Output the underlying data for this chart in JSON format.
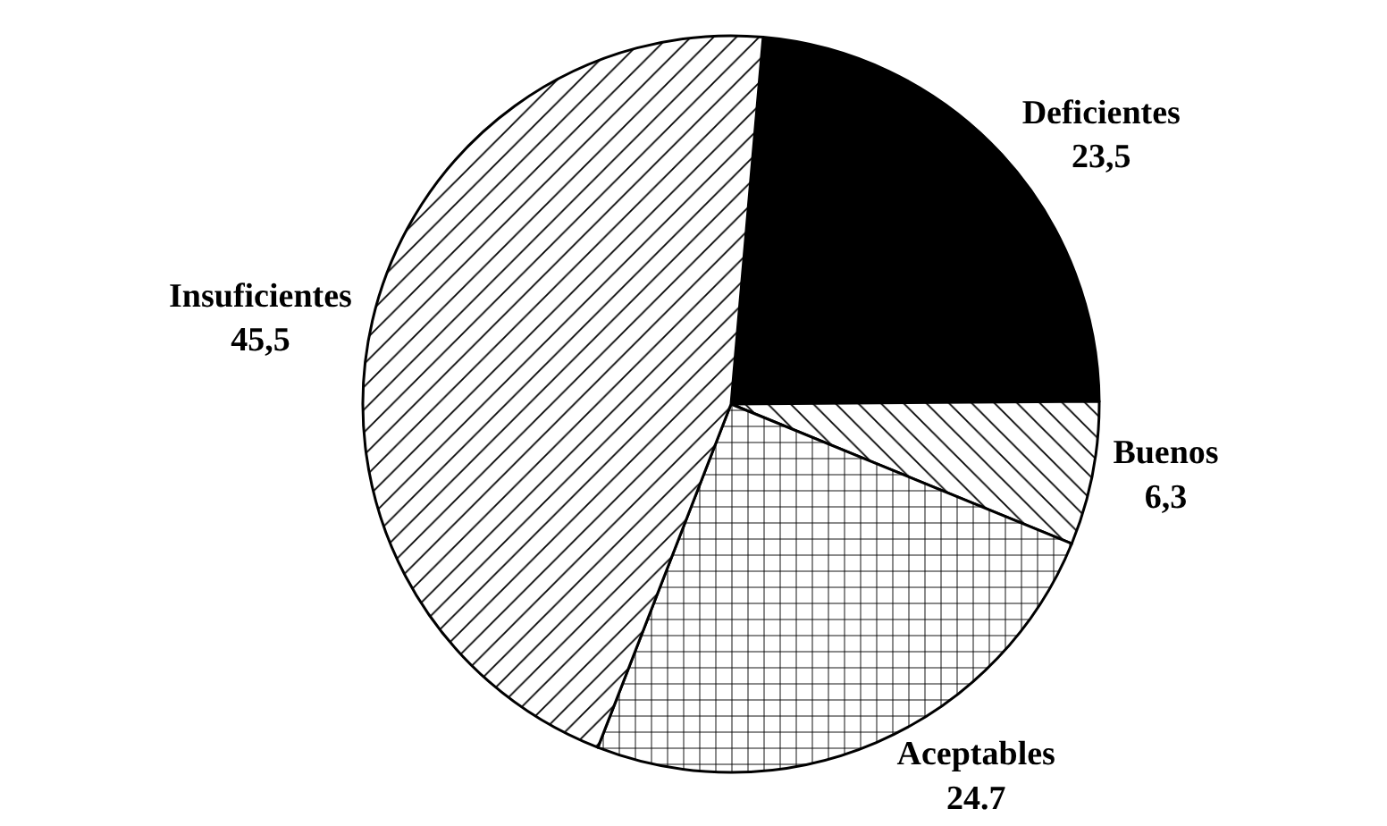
{
  "chart_data": {
    "type": "pie",
    "categories": [
      "Deficientes",
      "Buenos",
      "Aceptables",
      "Insuficientes"
    ],
    "values": [
      23.5,
      6.3,
      24.7,
      45.5
    ],
    "value_labels": [
      "23,5",
      "6,3",
      "24.7",
      "45,5"
    ],
    "colors": [
      "#000000",
      "#000000",
      "#000000",
      "#000000"
    ],
    "legend": false
  }
}
